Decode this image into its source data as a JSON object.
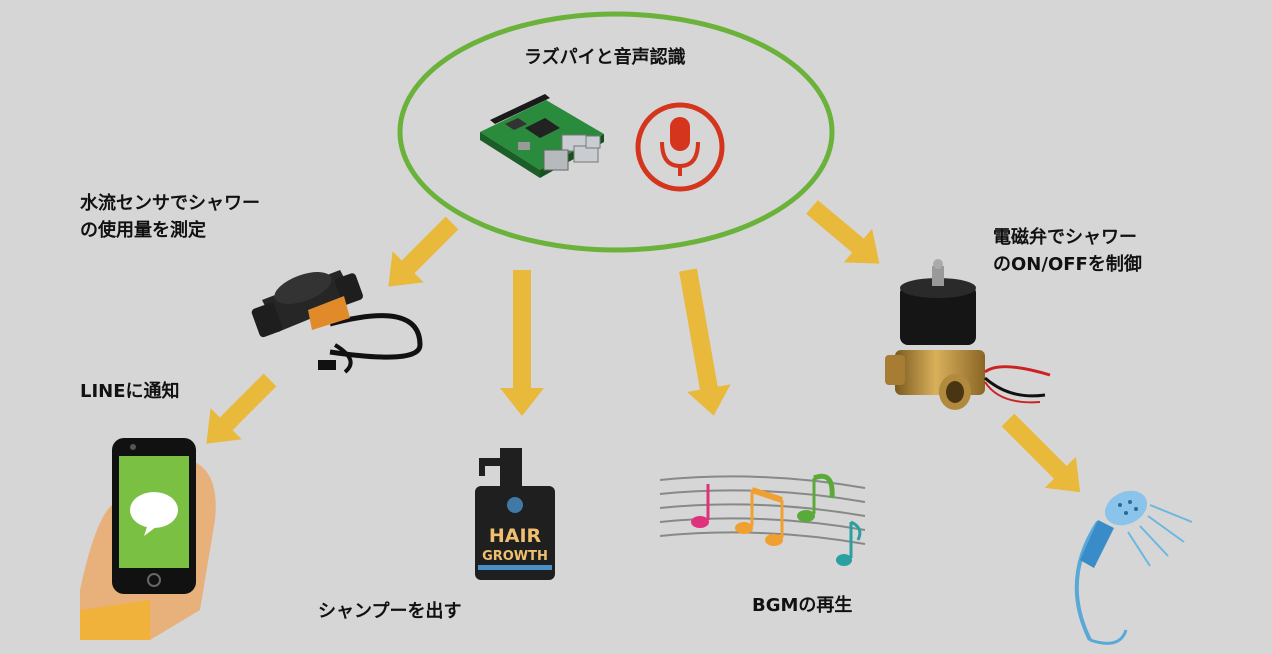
{
  "title": "ラズパイと音声認識",
  "labels": {
    "flow_sensor_line1": "水流センサでシャワー",
    "flow_sensor_line2": "の使用量を測定",
    "valve_line1": "電磁弁でシャワー",
    "valve_line2": "のON/OFFを制御",
    "line_notify": "LINEに通知",
    "shampoo": "シャンプーを出す",
    "bgm": "BGMの再生"
  },
  "bottle_text": {
    "line1": "HAIR",
    "line2": "GROWTH"
  },
  "icons": [
    "raspberry-pi-icon",
    "microphone-icon",
    "flow-sensor-icon",
    "solenoid-valve-icon",
    "smartphone-line-icon",
    "shampoo-bottle-icon",
    "music-notes-icon",
    "shower-head-icon"
  ],
  "colors": {
    "background": "#d6d6d6",
    "ellipse": "#6bb23a",
    "arrow": "#e8b93a",
    "mic": "#d4351c"
  }
}
